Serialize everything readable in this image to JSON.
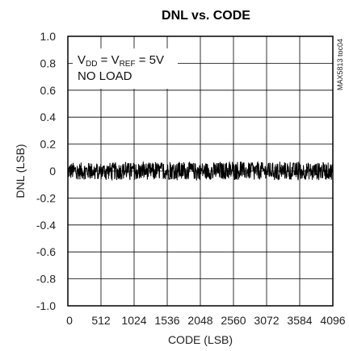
{
  "chart_data": {
    "type": "line",
    "title": "DNL vs. CODE",
    "xlabel": "CODE (LSB)",
    "ylabel": "DNL (LSB)",
    "xlim": [
      0,
      4096
    ],
    "ylim": [
      -1.0,
      1.0
    ],
    "x_ticks": [
      0,
      512,
      1024,
      1536,
      2048,
      2560,
      3072,
      3584,
      4096
    ],
    "y_ticks": [
      1.0,
      0.8,
      0.6,
      0.4,
      0.2,
      0,
      -0.2,
      -0.4,
      -0.6,
      -0.8,
      -1.0
    ],
    "x_tick_labels": [
      "0",
      "512",
      "1024",
      "1536",
      "2048",
      "2560",
      "3072",
      "3584",
      "4096"
    ],
    "y_tick_labels": [
      "1.0",
      "0.8",
      "0.6",
      "0.4",
      "0.2",
      "0",
      "-0.2",
      "-0.4",
      "-0.6",
      "-0.8",
      "-1.0"
    ],
    "grid": true,
    "annotation_lines": [
      {
        "base": "V",
        "sub": "DD",
        "mid": " = V",
        "sub2": "REF",
        "tail": " = 5V"
      },
      "NO LOAD"
    ],
    "side_label": "MAX5813 toc04",
    "series": [
      {
        "envelope_min": -0.07,
        "envelope_max": 0.07,
        "typical_range": [
          -0.04,
          0.04
        ]
      }
    ]
  }
}
